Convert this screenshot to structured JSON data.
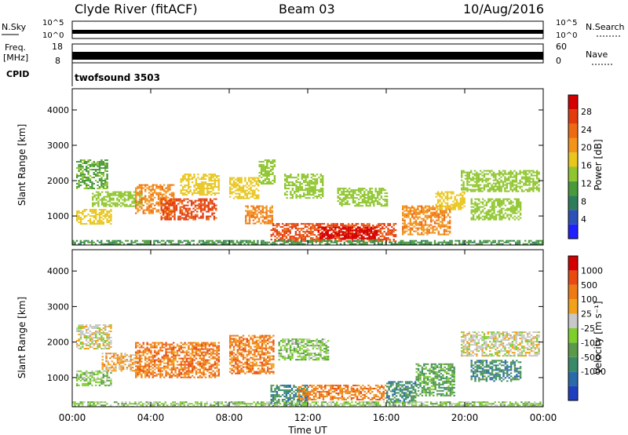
{
  "header": {
    "station": "Clyde River (fitACF)",
    "beam": "Beam 03",
    "date": "10/Aug/2016"
  },
  "noise_panel": {
    "left_label": "N.Sky",
    "right_label": "N.Search",
    "left_ticks": [
      "10^5",
      "10^0"
    ],
    "right_ticks": [
      "10^5",
      "10^0"
    ]
  },
  "freq_panel": {
    "left_label_1": "Freq.",
    "left_label_2": "[MHz]",
    "right_label": "Nave",
    "left_ticks": [
      "18",
      "8"
    ],
    "right_ticks": [
      "60",
      "0"
    ]
  },
  "cpid_panel": {
    "label": "CPID",
    "value": "twofsound 3503"
  },
  "x_axis": {
    "label": "Time UT",
    "ticks": [
      "00:00",
      "04:00",
      "08:00",
      "12:00",
      "16:00",
      "20:00",
      "00:00"
    ]
  },
  "chart_data": [
    {
      "type": "heatmap",
      "panel": "power",
      "ylabel": "Slant Range [km]",
      "yticks": [
        1000,
        2000,
        3000,
        4000
      ],
      "ylim": [
        180,
        4600
      ],
      "xlim_hours": [
        0,
        24
      ],
      "colorbar": {
        "label": "Power [dB]",
        "ticks": [
          "4",
          "8",
          "12",
          "16",
          "20",
          "24",
          "28"
        ],
        "colors": [
          "#1f1fff",
          "#2c4fb8",
          "#2e7d5a",
          "#4a9a3c",
          "#8fc52e",
          "#e8c61c",
          "#f19419",
          "#ee6a12",
          "#e23b0e",
          "#d40000"
        ]
      },
      "regions": [
        {
          "t": [
            0.2,
            1.8
          ],
          "r": [
            1800,
            2600
          ],
          "v": 10
        },
        {
          "t": [
            0.2,
            2.0
          ],
          "r": [
            800,
            1200
          ],
          "v": 16
        },
        {
          "t": [
            1.0,
            3.5
          ],
          "r": [
            1300,
            1700
          ],
          "v": 12
        },
        {
          "t": [
            3.2,
            5.2
          ],
          "r": [
            1100,
            1900
          ],
          "v": 20
        },
        {
          "t": [
            4.5,
            7.3
          ],
          "r": [
            900,
            1500
          ],
          "v": 24
        },
        {
          "t": [
            5.5,
            7.5
          ],
          "r": [
            1600,
            2200
          ],
          "v": 16
        },
        {
          "t": [
            8.0,
            9.5
          ],
          "r": [
            1500,
            2100
          ],
          "v": 16
        },
        {
          "t": [
            8.8,
            10.2
          ],
          "r": [
            800,
            1300
          ],
          "v": 20
        },
        {
          "t": [
            9.5,
            10.3
          ],
          "r": [
            1900,
            2600
          ],
          "v": 12
        },
        {
          "t": [
            10.1,
            16.5
          ],
          "r": [
            300,
            800
          ],
          "v": 24
        },
        {
          "t": [
            12.5,
            15.5
          ],
          "r": [
            350,
            700
          ],
          "v": 28
        },
        {
          "t": [
            10.8,
            12.8
          ],
          "r": [
            1500,
            2200
          ],
          "v": 12
        },
        {
          "t": [
            13.5,
            16.0
          ],
          "r": [
            1300,
            1800
          ],
          "v": 12
        },
        {
          "t": [
            16.8,
            19.2
          ],
          "r": [
            500,
            1300
          ],
          "v": 20
        },
        {
          "t": [
            18.5,
            20.0
          ],
          "r": [
            1200,
            1700
          ],
          "v": 16
        },
        {
          "t": [
            19.8,
            23.8
          ],
          "r": [
            1700,
            2300
          ],
          "v": 12
        },
        {
          "t": [
            20.3,
            22.8
          ],
          "r": [
            900,
            1500
          ],
          "v": 12
        },
        {
          "t": [
            0.0,
            24.0
          ],
          "r": [
            180,
            320
          ],
          "v": 8
        }
      ]
    },
    {
      "type": "heatmap",
      "panel": "velocity",
      "ylabel": "Slant Range [km]",
      "yticks": [
        1000,
        2000,
        3000,
        4000
      ],
      "ylim": [
        180,
        4600
      ],
      "xlim_hours": [
        0,
        24
      ],
      "colorbar": {
        "label": "Velocity [m s⁻¹]",
        "ticks": [
          "1000",
          "500",
          "100",
          "25",
          "-25",
          "-100",
          "-500",
          "-1000"
        ],
        "colors": [
          "#1f3fc0",
          "#2a6aa8",
          "#3a8a6a",
          "#5a9a4a",
          "#7ecf2c",
          "#c8c8c8",
          "#f1a21a",
          "#ef7a14",
          "#e84a10",
          "#d40000"
        ]
      },
      "regions": [
        {
          "t": [
            0.2,
            2.0
          ],
          "r": [
            1800,
            2500
          ],
          "v": 5
        },
        {
          "t": [
            0.2,
            2.0
          ],
          "r": [
            800,
            1200
          ],
          "v": 4
        },
        {
          "t": [
            1.5,
            3.5
          ],
          "r": [
            1200,
            1700
          ],
          "v": 6
        },
        {
          "t": [
            3.2,
            7.5
          ],
          "r": [
            1000,
            2000
          ],
          "v": 7
        },
        {
          "t": [
            8.0,
            10.3
          ],
          "r": [
            1100,
            2200
          ],
          "v": 7
        },
        {
          "t": [
            10.1,
            12.0
          ],
          "r": [
            200,
            800
          ],
          "v": 2
        },
        {
          "t": [
            11.5,
            16.0
          ],
          "r": [
            400,
            800
          ],
          "v": 7
        },
        {
          "t": [
            10.5,
            13.0
          ],
          "r": [
            1500,
            2100
          ],
          "v": 4
        },
        {
          "t": [
            16.0,
            17.5
          ],
          "r": [
            300,
            900
          ],
          "v": 2
        },
        {
          "t": [
            17.5,
            19.5
          ],
          "r": [
            500,
            1400
          ],
          "v": 3
        },
        {
          "t": [
            19.8,
            23.8
          ],
          "r": [
            1600,
            2300
          ],
          "v": 5
        },
        {
          "t": [
            20.3,
            22.8
          ],
          "r": [
            900,
            1500
          ],
          "v": 2
        },
        {
          "t": [
            0.0,
            24.0
          ],
          "r": [
            180,
            330
          ],
          "v": 4
        }
      ]
    }
  ]
}
